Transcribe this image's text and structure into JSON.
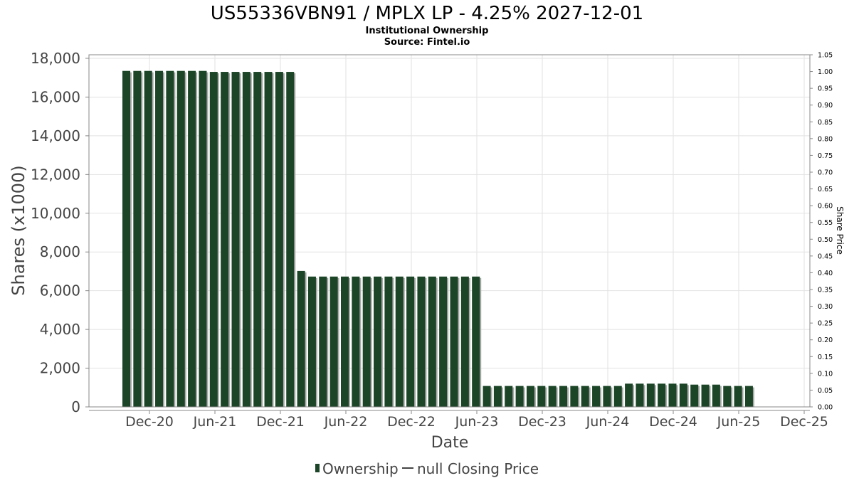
{
  "chart_data": {
    "type": "bar",
    "title": "US55336VBN91 / MPLX LP - 4.25% 2027-12-01",
    "subtitle_lines": [
      "Institutional Ownership",
      "Source: Fintel.io"
    ],
    "xlabel": "Date",
    "ylabel": "Shares (x1000)",
    "y2label": "Share Price",
    "ylim": [
      0,
      18000
    ],
    "y2lim": [
      0,
      1.05
    ],
    "y_ticks": [
      "0",
      "2,000",
      "4,000",
      "6,000",
      "8,000",
      "10,000",
      "12,000",
      "14,000",
      "16,000",
      "18,000"
    ],
    "y2_ticks": [
      "0.00",
      "0.05",
      "0.10",
      "0.15",
      "0.20",
      "0.25",
      "0.30",
      "0.35",
      "0.40",
      "0.45",
      "0.50",
      "0.55",
      "0.60",
      "0.65",
      "0.70",
      "0.75",
      "0.80",
      "0.85",
      "0.90",
      "0.95",
      "1.00",
      "1.05"
    ],
    "x_ticks": [
      "Dec-20",
      "Jun-21",
      "Dec-21",
      "Jun-22",
      "Dec-22",
      "Jun-23",
      "Dec-23",
      "Jun-24",
      "Dec-24",
      "Jun-25",
      "Dec-25"
    ],
    "grid": true,
    "legend": {
      "position": "bottom",
      "items": [
        "Ownership",
        "null Closing Price"
      ]
    },
    "colors": {
      "bar": "#1b4526",
      "bar_shadow": "#a9a9a9"
    },
    "series": [
      {
        "name": "Ownership",
        "values": [
          17350,
          17350,
          17350,
          17350,
          17350,
          17350,
          17350,
          17350,
          17300,
          17300,
          17300,
          17300,
          17300,
          17300,
          17300,
          17300,
          7020,
          6730,
          6730,
          6730,
          6730,
          6730,
          6730,
          6730,
          6730,
          6730,
          6730,
          6730,
          6730,
          6730,
          6730,
          6730,
          6730,
          1080,
          1080,
          1080,
          1080,
          1080,
          1080,
          1080,
          1080,
          1080,
          1080,
          1080,
          1080,
          1080,
          1200,
          1200,
          1200,
          1200,
          1200,
          1200,
          1150,
          1150,
          1150,
          1080,
          1080,
          1080
        ]
      }
    ]
  }
}
